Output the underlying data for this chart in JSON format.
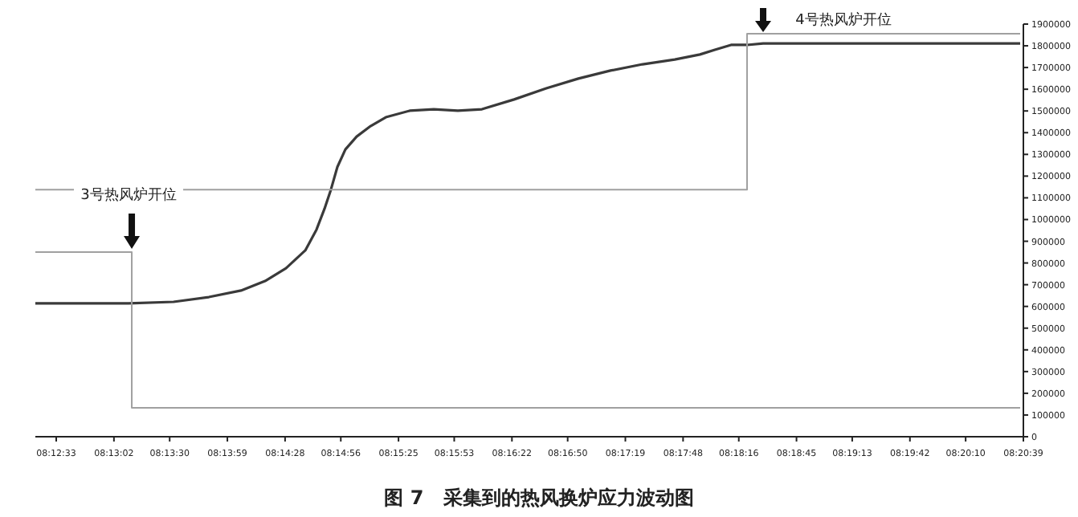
{
  "chart_data": {
    "type": "line",
    "title": "图 7　采集到的热风换炉应力波动图",
    "xlim": [
      8.20625,
      8.34417
    ],
    "xticks": [
      {
        "value": 8.209167,
        "label": "08:12:33"
      },
      {
        "value": 8.217222,
        "label": "08:13:02"
      },
      {
        "value": 8.225,
        "label": "08:13:30"
      },
      {
        "value": 8.233056,
        "label": "08:13:59"
      },
      {
        "value": 8.241111,
        "label": "08:14:28"
      },
      {
        "value": 8.248889,
        "label": "08:14:56"
      },
      {
        "value": 8.256944,
        "label": "08:15:25"
      },
      {
        "value": 8.264722,
        "label": "08:15:53"
      },
      {
        "value": 8.272778,
        "label": "08:16:22"
      },
      {
        "value": 8.280556,
        "label": "08:16:50"
      },
      {
        "value": 8.288611,
        "label": "08:17:19"
      },
      {
        "value": 8.296667,
        "label": "08:17:48"
      },
      {
        "value": 8.304444,
        "label": "08:18:16"
      },
      {
        "value": 8.3125,
        "label": "08:18:45"
      },
      {
        "value": 8.320278,
        "label": "08:19:13"
      },
      {
        "value": 8.328333,
        "label": "08:19:42"
      },
      {
        "value": 8.336111,
        "label": "08:20:10"
      },
      {
        "value": 8.344167,
        "label": "08:20:39"
      }
    ],
    "ylim": [
      0,
      1900000
    ],
    "yticks": [
      0,
      100000,
      200000,
      300000,
      400000,
      500000,
      600000,
      700000,
      800000,
      900000,
      1000000,
      1100000,
      1200000,
      1300000,
      1400000,
      1500000,
      1600000,
      1700000,
      1800000,
      1900000
    ],
    "grid": false,
    "marker": "none",
    "line_style": "solid",
    "series": [
      {
        "color": "#3a3a3a",
        "x": [
          8.20625,
          8.21926,
          8.22554,
          8.23047,
          8.23496,
          8.23832,
          8.24124,
          8.24393,
          8.2455,
          8.24662,
          8.24751,
          8.24841,
          8.24953,
          8.2511,
          8.2529,
          8.25517,
          8.2585,
          8.26187,
          8.26523,
          8.26859,
          8.27308,
          8.27757,
          8.28205,
          8.28654,
          8.29102,
          8.29551,
          8.29902,
          8.30111,
          8.30336,
          8.3056,
          8.30784,
          8.31345,
          8.32466,
          8.33588,
          8.34372
        ],
        "values": [
          614000,
          614000,
          621000,
          643000,
          673000,
          717000,
          776000,
          858000,
          954000,
          1050000,
          1138000,
          1242000,
          1323000,
          1382000,
          1427000,
          1471000,
          1501000,
          1508000,
          1501000,
          1508000,
          1553000,
          1604000,
          1649000,
          1686000,
          1715000,
          1737000,
          1760000,
          1782000,
          1804000,
          1804000,
          1811000,
          1811000,
          1811000,
          1811000,
          1811000
        ]
      },
      {
        "color": "#a0a0a0",
        "x": [
          8.20625,
          8.21971,
          8.21971,
          8.34372
        ],
        "values": [
          850000,
          850000,
          133000,
          133000
        ]
      },
      {
        "color": "#a0a0a0",
        "x": [
          8.20625,
          8.3056,
          8.3056,
          8.34372
        ],
        "values": [
          1138000,
          1138000,
          1856000,
          1856000
        ]
      }
    ],
    "annotations": [
      "3号热风炉开位",
      "4号热风炉开位"
    ]
  }
}
